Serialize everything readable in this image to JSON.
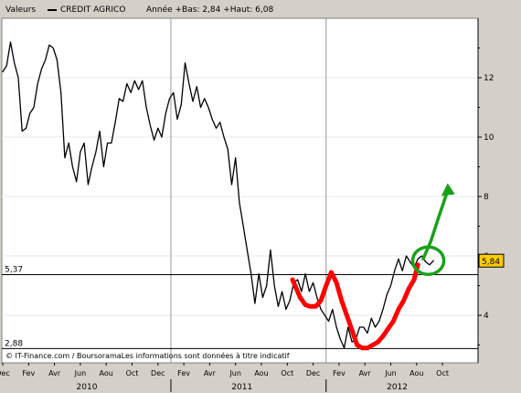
{
  "header": {
    "series_label": "Valeurs",
    "instrument": "CREDIT AGRICO",
    "stats": "Année +Bas: 2,84 +Haut: 6,08"
  },
  "footer": {
    "source": "© IT-Finance.com / BoursoramaLes informations sont données à titre indicatif"
  },
  "colors": {
    "background": "#ffffff",
    "frame": "#d4d0c8",
    "price_line": "#000000",
    "annotation_red": "#ff0000",
    "annotation_green": "#1aa11a",
    "last_price_badge": "#ffcc00"
  },
  "chart_data": {
    "type": "line",
    "x_unit": "month",
    "xlim": [
      "2009-12",
      "2012-11"
    ],
    "ylim": [
      2.4,
      14
    ],
    "y_ticks": [
      "12",
      "10",
      "8",
      "6",
      "4"
    ],
    "y_tick_values": [
      12,
      10,
      8,
      6,
      4
    ],
    "x_tick_labels": [
      "Dec",
      "Fev",
      "Avr",
      "Jun",
      "Aou",
      "Oct",
      "Dec",
      "Fev",
      "Avr",
      "Jun",
      "Aou",
      "Oct",
      "Dec",
      "Fev",
      "Avr",
      "Jun",
      "Aou",
      "Oct"
    ],
    "year_labels": [
      {
        "label": "2010",
        "month_index": 6.5
      },
      {
        "label": "2011",
        "month_index": 18.5
      },
      {
        "label": "2012",
        "month_index": 30.5
      }
    ],
    "reference_lines": [
      {
        "label": "5,37",
        "value": 5.37
      },
      {
        "label": "2,88",
        "value": 2.88
      }
    ],
    "last_price": {
      "label": "5,84",
      "value": 5.84
    },
    "series": [
      {
        "color": "#000000",
        "x": [
          0,
          0.3,
          0.6,
          0.9,
          1.2,
          1.5,
          1.8,
          2.1,
          2.4,
          2.7,
          3.0,
          3.3,
          3.6,
          3.9,
          4.2,
          4.5,
          4.8,
          5.1,
          5.4,
          5.7,
          6.0,
          6.3,
          6.6,
          6.9,
          7.2,
          7.5,
          7.8,
          8.1,
          8.4,
          8.7,
          9.0,
          9.3,
          9.6,
          9.9,
          10.2,
          10.5,
          10.8,
          11.1,
          11.4,
          11.7,
          12.0,
          12.3,
          12.6,
          12.9,
          13.2,
          13.5,
          13.8,
          14.1,
          14.4,
          14.7,
          15.0,
          15.3,
          15.6,
          15.9,
          16.2,
          16.5,
          16.8,
          17.1,
          17.4,
          17.7,
          18.0,
          18.3,
          18.6,
          18.9,
          19.2,
          19.5,
          19.8,
          20.1,
          20.4,
          20.7,
          21.0,
          21.3,
          21.6,
          21.9,
          22.2,
          22.5,
          22.8,
          23.1,
          23.4,
          23.7,
          24.0,
          24.3,
          24.6,
          24.9,
          25.2,
          25.5,
          25.8,
          26.1,
          26.4,
          26.7,
          27.0,
          27.3,
          27.6,
          27.9,
          28.2,
          28.5,
          28.8,
          29.1,
          29.4,
          29.7,
          30.0,
          30.3,
          30.6,
          30.9,
          31.2,
          31.5,
          31.8,
          32.1,
          32.4,
          32.7,
          33.0,
          33.3
        ],
        "y": [
          12.2,
          12.4,
          13.2,
          12.5,
          12.0,
          10.2,
          10.3,
          10.8,
          11.0,
          11.8,
          12.3,
          12.6,
          13.1,
          13.0,
          12.6,
          11.5,
          9.3,
          9.8,
          9.0,
          8.5,
          9.5,
          9.8,
          8.4,
          9.0,
          9.5,
          10.2,
          9.0,
          9.8,
          9.8,
          10.5,
          11.3,
          11.2,
          11.8,
          11.5,
          11.9,
          11.6,
          11.9,
          11.0,
          10.4,
          9.9,
          10.3,
          10.0,
          10.8,
          11.3,
          11.5,
          10.6,
          11.1,
          12.5,
          11.8,
          11.2,
          11.7,
          11.0,
          11.3,
          11.0,
          10.6,
          10.3,
          10.5,
          10.0,
          9.6,
          8.4,
          9.3,
          7.8,
          7.0,
          6.2,
          5.4,
          4.4,
          5.4,
          4.6,
          5.0,
          6.2,
          5.0,
          4.3,
          4.8,
          4.2,
          4.5,
          5.1,
          5.2,
          4.8,
          5.4,
          4.8,
          5.1,
          4.6,
          4.2,
          4.0,
          3.8,
          4.2,
          3.6,
          3.2,
          2.9,
          3.6,
          3.1,
          3.2,
          3.6,
          3.6,
          3.4,
          3.9,
          3.6,
          3.8,
          4.2,
          4.7,
          5.0,
          5.5,
          5.9,
          5.5,
          6.0,
          5.8,
          5.6,
          5.9,
          6.0,
          5.8,
          5.7,
          5.84
        ]
      },
      {
        "color": "#ff0000",
        "x": [
          22.4,
          22.7,
          23.0,
          23.4,
          23.8,
          24.2,
          24.6,
          25.0,
          25.4,
          25.8,
          26.2,
          26.6,
          27.0,
          27.4,
          27.8,
          28.2,
          28.6,
          29.0,
          29.4,
          29.8,
          30.2,
          30.6,
          31.0,
          31.4,
          31.8,
          32.1
        ],
        "y": [
          5.2,
          4.9,
          4.6,
          4.35,
          4.3,
          4.3,
          4.5,
          5.0,
          5.45,
          5.1,
          4.5,
          4.0,
          3.5,
          3.0,
          2.9,
          2.9,
          3.0,
          3.1,
          3.3,
          3.55,
          3.8,
          4.2,
          4.5,
          4.9,
          5.2,
          5.7
        ]
      },
      {
        "color": "#1aa11a",
        "x": [
          32.5,
          33.1,
          33.7,
          34.4
        ],
        "y": [
          5.9,
          6.5,
          7.3,
          8.2
        ]
      }
    ]
  }
}
